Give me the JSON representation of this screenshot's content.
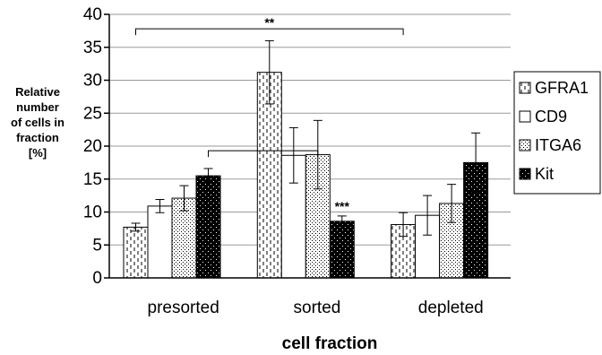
{
  "chart_data": {
    "type": "bar",
    "categories": [
      "presorted",
      "sorted",
      "depleted"
    ],
    "xlabel": "cell fraction",
    "ylabel": [
      "Relative",
      "number",
      "of cells in",
      "fraction",
      "[%]"
    ],
    "ylim": [
      0,
      40
    ],
    "yticks": [
      0,
      5,
      10,
      15,
      20,
      25,
      30,
      35,
      40
    ],
    "grid": true,
    "legend_position": "right",
    "series": [
      {
        "name": "GFRA1",
        "pattern": "dashes",
        "values": [
          7.7,
          31.2,
          8.1
        ],
        "errors": [
          0.6,
          4.8,
          1.8
        ]
      },
      {
        "name": "CD9",
        "pattern": "white",
        "values": [
          10.9,
          18.6,
          9.5
        ],
        "errors": [
          1.0,
          4.2,
          3.0
        ]
      },
      {
        "name": "ITGA6",
        "pattern": "dots",
        "values": [
          12.1,
          18.7,
          11.3
        ],
        "errors": [
          1.9,
          5.2,
          2.9
        ]
      },
      {
        "name": "Kit",
        "pattern": "black-dots",
        "values": [
          15.5,
          8.6,
          17.5
        ],
        "errors": [
          1.1,
          0.8,
          4.5
        ]
      }
    ],
    "annotations": [
      {
        "text": "**",
        "from": [
          0,
          0
        ],
        "to": [
          2,
          0
        ],
        "y": 37.8
      },
      {
        "text": "",
        "from": [
          0,
          3
        ],
        "to": [
          1,
          2
        ],
        "y": 19.3
      },
      {
        "text": "***",
        "at": [
          1,
          3
        ],
        "y": 10.2
      }
    ]
  }
}
